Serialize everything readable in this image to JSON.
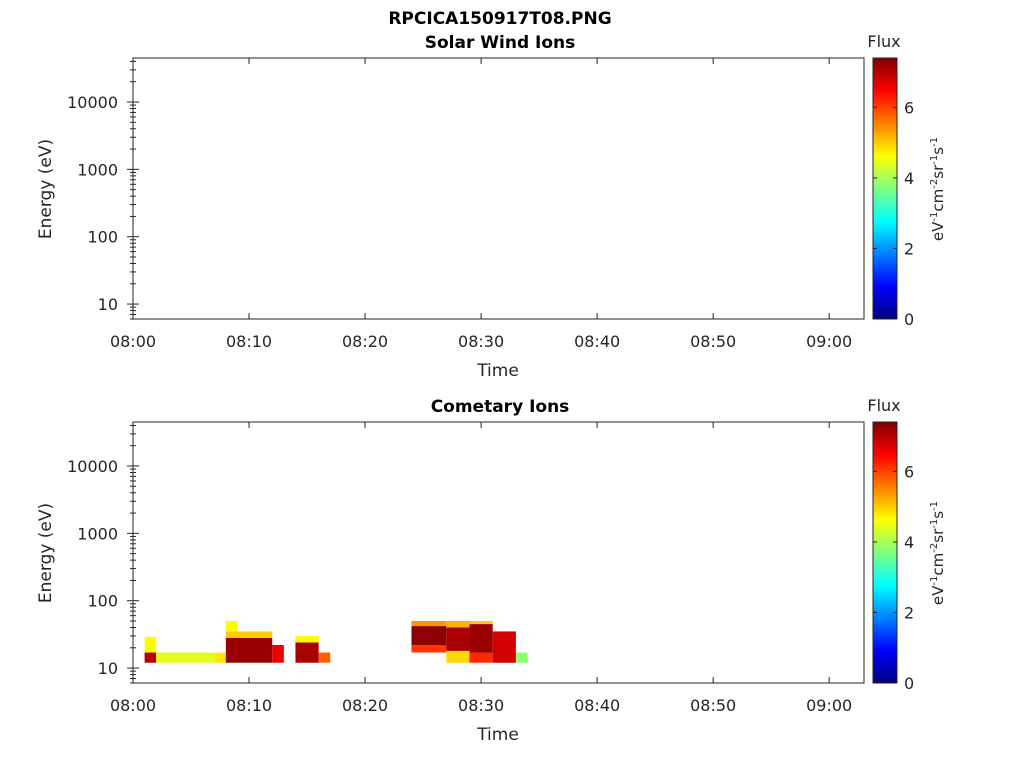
{
  "figure": {
    "title": "RPCICA150917T08.PNG"
  },
  "chart_data": [
    {
      "type": "heatmap",
      "title": "Solar Wind Ions",
      "xlabel": "Time",
      "ylabel": "Energy (eV)",
      "x_ticks": [
        "08:00",
        "08:10",
        "08:20",
        "08:30",
        "08:40",
        "08:50",
        "09:00"
      ],
      "y_ticks": [
        "10",
        "100",
        "1000",
        "10000"
      ],
      "xlim": [
        "08:00",
        "09:03"
      ],
      "ylim": [
        6,
        45000
      ],
      "yscale": "log",
      "colorbar": {
        "label": "Flux",
        "unit": "eV-1cm-2sr-1s-1",
        "ticks": [
          "0",
          "2",
          "4",
          "6"
        ],
        "range": [
          0,
          7.4
        ],
        "colormap": "jet"
      },
      "cells": []
    },
    {
      "type": "heatmap",
      "title": "Cometary Ions",
      "xlabel": "Time",
      "ylabel": "Energy (eV)",
      "x_ticks": [
        "08:00",
        "08:10",
        "08:20",
        "08:30",
        "08:40",
        "08:50",
        "09:00"
      ],
      "y_ticks": [
        "10",
        "100",
        "1000",
        "10000"
      ],
      "xlim": [
        "08:00",
        "09:03"
      ],
      "ylim": [
        6,
        45000
      ],
      "yscale": "log",
      "colorbar": {
        "label": "Flux",
        "unit": "eV-1cm-2sr-1s-1",
        "ticks": [
          "0",
          "2",
          "4",
          "6"
        ],
        "range": [
          0,
          7.4
        ],
        "colormap": "jet"
      },
      "cells": [
        {
          "t0": "08:01",
          "t1": "08:02",
          "e0": 12,
          "e1": 17,
          "v": 7.0
        },
        {
          "t0": "08:01",
          "t1": "08:02",
          "e0": 17,
          "e1": 29,
          "v": 4.6
        },
        {
          "t0": "08:02",
          "t1": "08:07",
          "e0": 12,
          "e1": 17,
          "v": 4.4
        },
        {
          "t0": "08:07",
          "t1": "08:08",
          "e0": 12,
          "e1": 17,
          "v": 4.8
        },
        {
          "t0": "08:08",
          "t1": "08:12",
          "e0": 12,
          "e1": 28,
          "v": 7.2
        },
        {
          "t0": "08:08",
          "t1": "08:12",
          "e0": 28,
          "e1": 35,
          "v": 5.0
        },
        {
          "t0": "08:08",
          "t1": "08:09",
          "e0": 35,
          "e1": 50,
          "v": 4.6
        },
        {
          "t0": "08:12",
          "t1": "08:13",
          "e0": 12,
          "e1": 22,
          "v": 6.6
        },
        {
          "t0": "08:14",
          "t1": "08:16",
          "e0": 12,
          "e1": 24,
          "v": 7.1
        },
        {
          "t0": "08:14",
          "t1": "08:16",
          "e0": 24,
          "e1": 30,
          "v": 4.6
        },
        {
          "t0": "08:16",
          "t1": "08:17",
          "e0": 12,
          "e1": 17,
          "v": 5.8
        },
        {
          "t0": "08:24",
          "t1": "08:27",
          "e0": 17,
          "e1": 22,
          "v": 6.1
        },
        {
          "t0": "08:24",
          "t1": "08:27",
          "e0": 22,
          "e1": 42,
          "v": 7.3
        },
        {
          "t0": "08:24",
          "t1": "08:27",
          "e0": 42,
          "e1": 50,
          "v": 5.4
        },
        {
          "t0": "08:27",
          "t1": "08:29",
          "e0": 12,
          "e1": 18,
          "v": 4.9
        },
        {
          "t0": "08:27",
          "t1": "08:29",
          "e0": 18,
          "e1": 40,
          "v": 7.1
        },
        {
          "t0": "08:27",
          "t1": "08:29",
          "e0": 40,
          "e1": 50,
          "v": 5.2
        },
        {
          "t0": "08:29",
          "t1": "08:31",
          "e0": 12,
          "e1": 17,
          "v": 6.2
        },
        {
          "t0": "08:29",
          "t1": "08:31",
          "e0": 17,
          "e1": 45,
          "v": 7.2
        },
        {
          "t0": "08:29",
          "t1": "08:31",
          "e0": 45,
          "e1": 50,
          "v": 5.0
        },
        {
          "t0": "08:31",
          "t1": "08:33",
          "e0": 12,
          "e1": 35,
          "v": 6.8
        },
        {
          "t0": "08:33",
          "t1": "08:34",
          "e0": 12,
          "e1": 17,
          "v": 3.8
        }
      ]
    }
  ]
}
